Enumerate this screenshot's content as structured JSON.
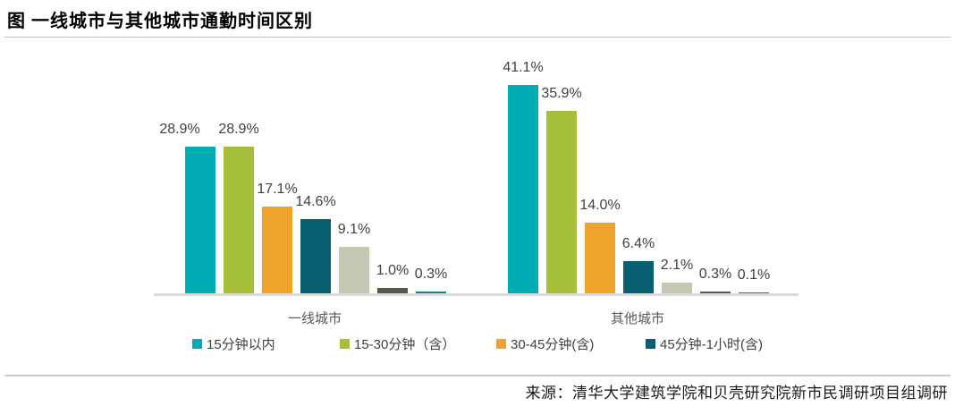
{
  "title": "图 一线城市与其他城市通勤时间区别",
  "source": "来源：清华大学建筑学院和贝壳研究院新市民调研项目组调研",
  "chart_data": {
    "type": "bar",
    "title": "图 一线城市与其他城市通勤时间区别",
    "categories": [
      "一线城市",
      "其他城市"
    ],
    "series": [
      {
        "name": "15分钟以内",
        "color": "#00adb5",
        "values": [
          28.9,
          41.1
        ]
      },
      {
        "name": "15-30分钟（含）",
        "color": "#a5bf3b",
        "values": [
          28.9,
          35.9
        ]
      },
      {
        "name": "30-45分钟(含)",
        "color": "#f0a32b",
        "values": [
          17.1,
          14.0
        ]
      },
      {
        "name": "45分钟-1小时(含)",
        "color": "#085f70",
        "values": [
          14.6,
          6.4
        ]
      },
      {
        "name": "",
        "color": "#c5c9b4",
        "values": [
          9.1,
          2.1
        ]
      },
      {
        "name": "",
        "color": "#59594a",
        "values": [
          1.0,
          0.3
        ]
      },
      {
        "name": "",
        "color": "#1f7a8c",
        "values": [
          0.3,
          0.1
        ]
      }
    ],
    "legend": [
      "15分钟以内",
      "15-30分钟（含）",
      "30-45分钟(含)",
      "45分钟-1小时(含)"
    ],
    "legend_position": "bottom",
    "data_labels": true,
    "value_suffix": "%",
    "ylim": [
      0,
      45
    ],
    "grid": false,
    "axis_color": "#d9d9d9",
    "label_color": "#404040"
  }
}
